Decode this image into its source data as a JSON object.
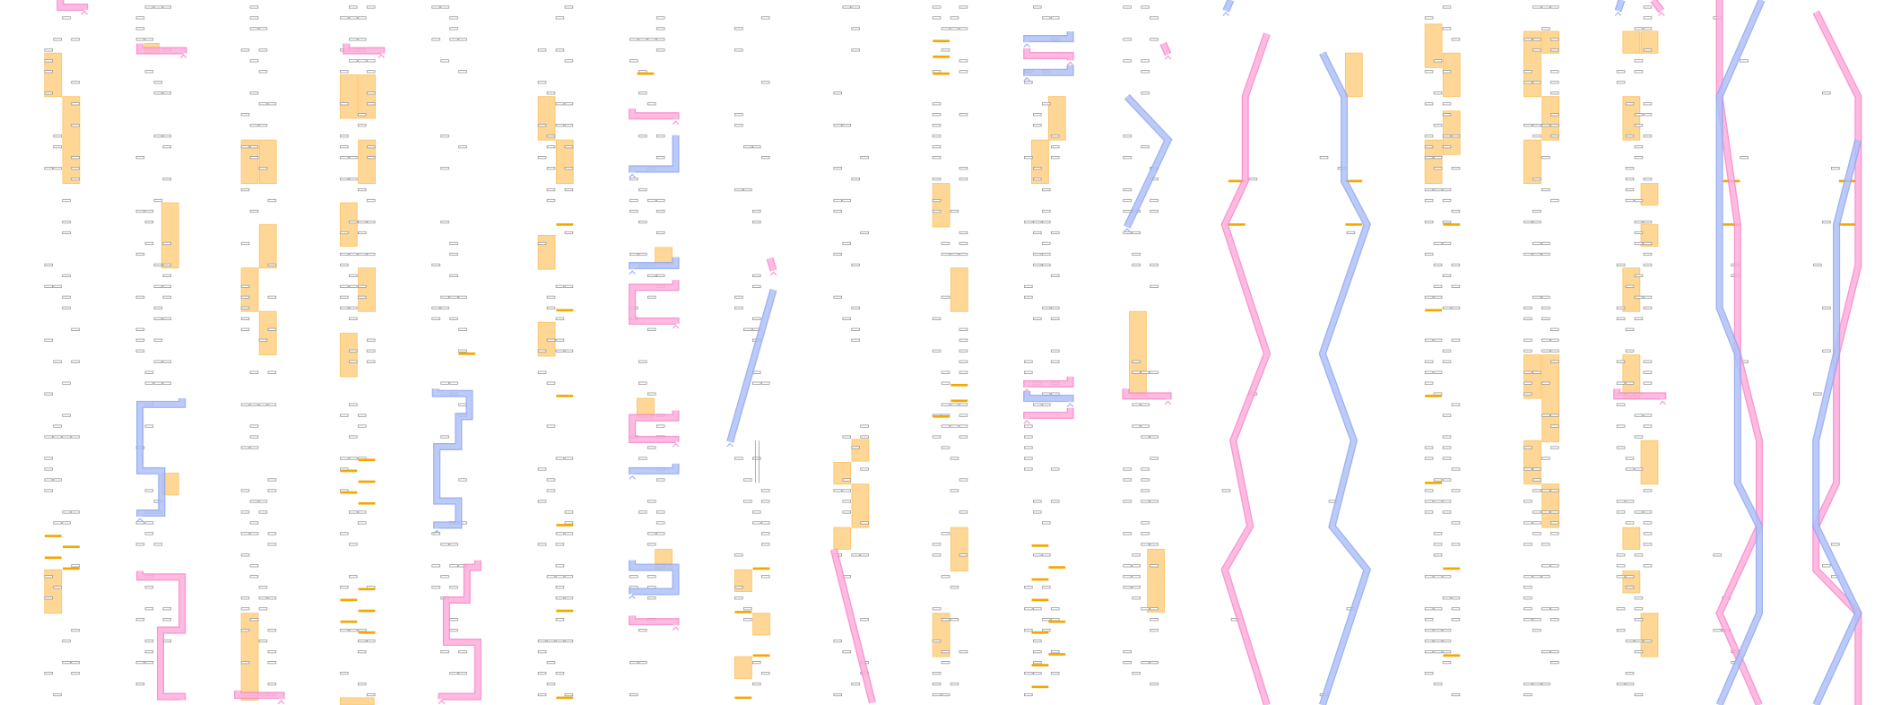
{
  "colors": {
    "background": "#ffffff",
    "block_fill": "#fed796",
    "block_edge": "#fcc66e",
    "dash": "#f4a700",
    "tick_stroke": "#9a9a9a",
    "tick_fill": "#ffffff",
    "pink_fill": "#ffaedb",
    "pink_edge": "#f586cc",
    "blue_fill": "#b1c1f7",
    "blue_edge": "#8ea6f2"
  }
}
